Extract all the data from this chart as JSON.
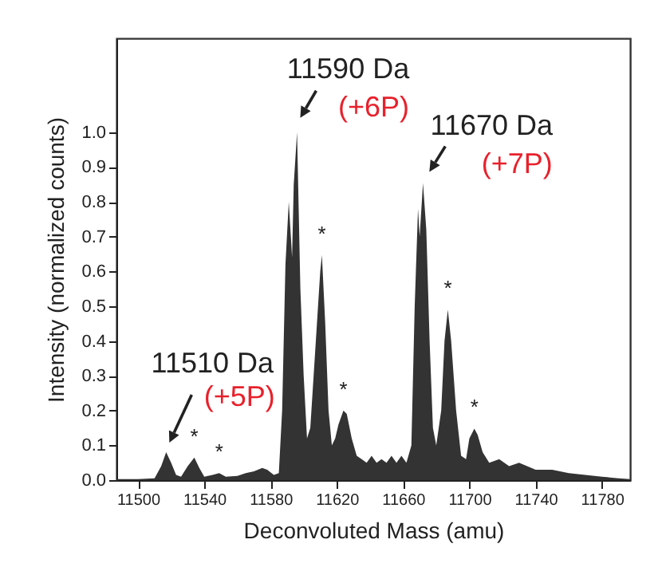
{
  "chart_data": {
    "type": "area",
    "xlabel": "Deconvoluted Mass (amu)",
    "ylabel": "Intensity (normalized counts)",
    "xlim": [
      11487,
      11797
    ],
    "ylim": [
      0,
      1.27
    ],
    "xticks": [
      11500,
      11540,
      11580,
      11620,
      11660,
      11700,
      11740,
      11780
    ],
    "yticks": [
      {
        "value": 0,
        "label": "0.0"
      },
      {
        "value": 0.1,
        "label": "0.1"
      },
      {
        "value": 0.2,
        "label": "0.2"
      },
      {
        "value": 0.3,
        "label": "0.3"
      },
      {
        "value": 0.4,
        "label": "0.4"
      },
      {
        "value": 0.5,
        "label": "0.5"
      },
      {
        "value": 0.6,
        "label": "0.6"
      },
      {
        "value": 0.7,
        "label": "0.7"
      },
      {
        "value": 0.8,
        "label": "0.8"
      },
      {
        "value": 0.9,
        "label": "0.9"
      },
      {
        "value": 1,
        "label": "1.0"
      }
    ],
    "grid": false,
    "legend": false,
    "x": [
      11487,
      11500,
      11510,
      11514,
      11517,
      11520,
      11523,
      11526,
      11530,
      11534,
      11537,
      11540,
      11545,
      11549,
      11553,
      11560,
      11565,
      11570,
      11575,
      11578,
      11582,
      11585,
      11587,
      11589,
      11591,
      11593,
      11594,
      11596,
      11598,
      11600,
      11602,
      11604,
      11606,
      11608,
      11610,
      11611,
      11613,
      11615,
      11617,
      11619,
      11621,
      11624,
      11626,
      11629,
      11632,
      11635,
      11638,
      11641,
      11644,
      11647,
      11650,
      11653,
      11656,
      11659,
      11662,
      11665,
      11667,
      11669,
      11670,
      11672,
      11674,
      11676,
      11678,
      11680,
      11683,
      11685,
      11687,
      11689,
      11692,
      11695,
      11698,
      11700,
      11703,
      11705,
      11708,
      11712,
      11718,
      11724,
      11730,
      11740,
      11750,
      11760,
      11770,
      11780,
      11790,
      11797
    ],
    "series": [
      {
        "color": "#333333",
        "values": [
          0.003,
          0.003,
          0.005,
          0.04,
          0.08,
          0.05,
          0.015,
          0.01,
          0.04,
          0.065,
          0.035,
          0.01,
          0.015,
          0.02,
          0.01,
          0.012,
          0.02,
          0.025,
          0.035,
          0.03,
          0.015,
          0.02,
          0.2,
          0.62,
          0.8,
          0.64,
          0.85,
          1.0,
          0.55,
          0.3,
          0.12,
          0.15,
          0.3,
          0.45,
          0.6,
          0.647,
          0.45,
          0.2,
          0.1,
          0.12,
          0.16,
          0.2,
          0.19,
          0.12,
          0.07,
          0.06,
          0.05,
          0.07,
          0.05,
          0.06,
          0.05,
          0.07,
          0.05,
          0.07,
          0.05,
          0.1,
          0.5,
          0.78,
          0.7,
          0.854,
          0.72,
          0.4,
          0.15,
          0.1,
          0.2,
          0.4,
          0.49,
          0.4,
          0.2,
          0.07,
          0.06,
          0.12,
          0.148,
          0.13,
          0.08,
          0.05,
          0.06,
          0.04,
          0.05,
          0.03,
          0.03,
          0.02,
          0.015,
          0.01,
          0.005,
          0.003
        ]
      }
    ],
    "annotations": [
      {
        "text": "11510 Da",
        "x": 11517,
        "y": 0.08
      },
      {
        "text": "(+5P)",
        "x": 11517,
        "y": 0.08
      },
      {
        "text": "11590 Da",
        "x": 11596,
        "y": 1.0
      },
      {
        "text": "(+6P)",
        "x": 11596,
        "y": 1.0
      },
      {
        "text": "11670 Da",
        "x": 11672,
        "y": 0.854
      },
      {
        "text": "(+7P)",
        "x": 11672,
        "y": 0.854
      },
      {
        "text": "*",
        "x": 11534,
        "y": 0.065
      },
      {
        "text": "*",
        "x": 11549,
        "y": 0.02
      },
      {
        "text": "*",
        "x": 11611,
        "y": 0.647
      },
      {
        "text": "*",
        "x": 11624,
        "y": 0.2
      },
      {
        "text": "*",
        "x": 11687,
        "y": 0.49
      },
      {
        "text": "*",
        "x": 11703,
        "y": 0.148
      }
    ]
  }
}
